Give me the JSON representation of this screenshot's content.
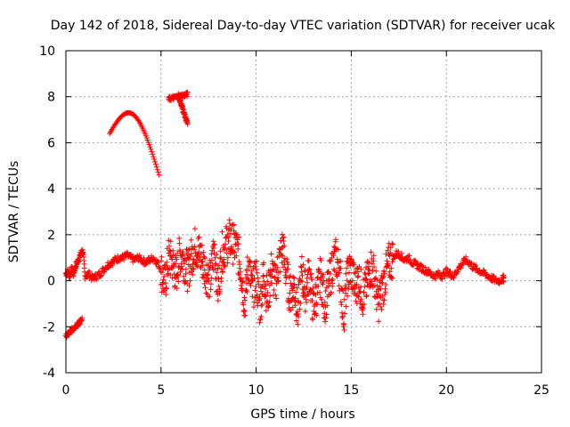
{
  "chart_data": {
    "type": "scatter",
    "title": "Day 142 of 2018, Sidereal Day-to-day VTEC variation (SDTVAR) for receiver ucak",
    "xlabel": "GPS time / hours",
    "ylabel": "SDTVAR / TECUs",
    "xlim": [
      0,
      25
    ],
    "ylim": [
      -4,
      10
    ],
    "xticks": [
      0,
      5,
      10,
      15,
      20,
      25
    ],
    "yticks": [
      -4,
      -2,
      0,
      2,
      4,
      6,
      8,
      10
    ],
    "grid": true,
    "marker": "+",
    "color": "#ff0000",
    "series": [
      {
        "name": "ucak",
        "x": [
          0.0,
          0.1,
          0.2,
          0.3,
          0.4,
          0.5,
          0.6,
          0.7,
          0.8,
          0.9,
          1.0,
          1.2,
          1.4,
          1.6,
          1.8,
          2.0,
          2.2,
          2.4,
          2.6,
          2.8,
          3.0,
          3.2,
          3.4,
          3.6,
          3.8,
          4.0,
          4.2,
          4.4,
          4.6,
          4.8,
          5.0,
          5.2,
          5.4,
          5.6,
          5.8,
          6.0,
          6.2,
          6.4,
          6.6,
          6.8,
          7.0,
          7.2,
          7.4,
          7.6,
          7.8,
          8.0,
          8.2,
          8.4,
          8.6,
          8.8,
          9.0,
          9.2,
          9.4,
          9.6,
          9.8,
          10.0,
          10.2,
          10.4,
          10.6,
          10.8,
          11.0,
          11.2,
          11.4,
          11.6,
          11.8,
          12.0,
          12.2,
          12.4,
          12.6,
          12.8,
          13.0,
          13.2,
          13.4,
          13.6,
          13.8,
          14.0,
          14.2,
          14.4,
          14.6,
          14.8,
          15.0,
          15.2,
          15.4,
          15.6,
          15.8,
          16.0,
          16.2,
          16.4,
          16.6,
          16.8,
          17.0,
          17.2,
          17.4,
          17.6,
          17.8,
          18.0,
          18.2,
          18.4,
          18.6,
          18.8,
          19.0,
          19.2,
          19.4,
          19.6,
          19.8,
          20.0,
          20.2,
          20.4,
          20.6,
          20.8,
          21.0,
          21.2,
          21.4,
          21.6,
          21.8,
          22.0,
          22.2,
          22.4,
          22.6,
          22.8,
          23.0
        ],
        "y": [
          0.3,
          0.4,
          0.2,
          0.5,
          0.3,
          0.6,
          0.8,
          1.0,
          1.2,
          1.3,
          0.2,
          0.3,
          0.1,
          0.2,
          0.3,
          0.5,
          0.7,
          0.8,
          0.9,
          1.0,
          1.0,
          1.1,
          1.0,
          0.9,
          1.0,
          0.9,
          0.8,
          0.9,
          1.0,
          0.8,
          0.5,
          -0.2,
          1.0,
          0.8,
          0.2,
          1.2,
          0.9,
          0.4,
          1.0,
          1.5,
          1.2,
          0.8,
          0.3,
          0.0,
          1.5,
          -0.4,
          1.2,
          1.5,
          1.8,
          1.6,
          1.4,
          0.5,
          -1.0,
          0.8,
          -0.5,
          0.2,
          -1.2,
          0.3,
          -0.8,
          0.5,
          -0.2,
          0.8,
          1.5,
          0.2,
          -0.6,
          -0.2,
          -1.4,
          0.3,
          -0.5,
          0.4,
          -1.2,
          -0.6,
          0.2,
          -1.0,
          -0.3,
          0.6,
          1.0,
          0.4,
          -1.5,
          0.2,
          0.5,
          -0.3,
          0.1,
          -0.7,
          -0.2,
          0.6,
          0.3,
          -1.0,
          -0.5,
          0.2,
          0.8,
          1.0,
          1.2,
          1.1,
          0.9,
          1.0,
          0.8,
          0.7,
          0.6,
          0.5,
          0.4,
          0.3,
          0.2,
          0.3,
          0.2,
          0.4,
          0.3,
          0.2,
          0.5,
          0.7,
          0.9,
          0.8,
          0.6,
          0.5,
          0.4,
          0.3,
          0.2,
          0.1,
          0.0,
          0.0,
          0.1
        ]
      }
    ],
    "segments": [
      {
        "x0": 0.0,
        "x1": 0.85,
        "y0": -2.4,
        "y1": -1.7
      },
      {
        "x0": 2.3,
        "x1": 4.9,
        "peak_x": 3.3,
        "peak_y": 7.3,
        "y0": 6.4,
        "y1": 4.6
      },
      {
        "x0": 5.4,
        "x1": 6.4,
        "y0": 7.9,
        "y1": 8.1
      },
      {
        "x0": 5.9,
        "x1": 6.4,
        "y0": 8.1,
        "y1": 6.8
      }
    ]
  }
}
